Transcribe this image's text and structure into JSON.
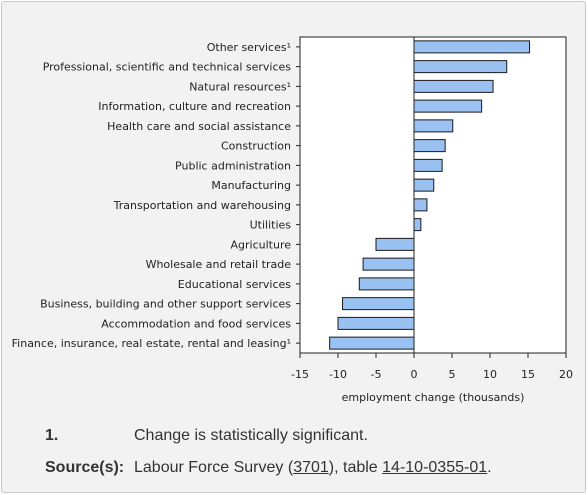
{
  "chart_data": {
    "type": "bar",
    "orientation": "horizontal",
    "categories": [
      "Other services¹",
      "Professional, scientific and technical services",
      "Natural resources¹",
      "Information, culture and recreation",
      "Health care and social assistance",
      "Construction",
      "Public administration",
      "Manufacturing",
      "Transportation and warehousing",
      "Utilities",
      "Agriculture",
      "Wholesale and retail trade",
      "Educational services",
      "Business, building and other support services",
      "Accommodation and food services",
      "Finance, insurance, real estate, rental and leasing¹"
    ],
    "values": [
      15.2,
      12.2,
      10.4,
      8.9,
      5.1,
      4.1,
      3.7,
      2.6,
      1.7,
      0.9,
      -5.0,
      -6.7,
      -7.2,
      -9.4,
      -10.0,
      -11.1
    ],
    "xlabel": "employment change (thousands)",
    "ylabel": "",
    "xlim": [
      -15,
      20
    ],
    "xticks": [
      -15,
      -10,
      -5,
      0,
      5,
      10,
      15,
      20
    ],
    "grid": false,
    "bar_color": "#99c2f2",
    "bar_edge_color": "#1a1a1a"
  },
  "footnote": {
    "number": "1.",
    "text": "Change is statistically significant."
  },
  "source": {
    "label": "Source(s):",
    "text_before": "Labour Force Survey (",
    "survey_id": "3701",
    "text_middle": "), table ",
    "table_id": "14-10-0355-01",
    "text_after": "."
  }
}
